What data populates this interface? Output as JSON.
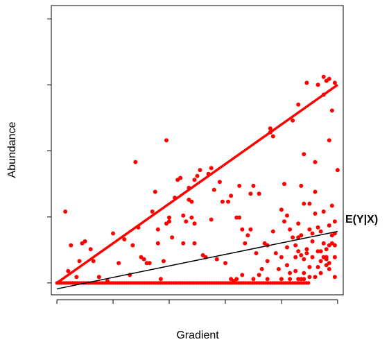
{
  "chart_data": {
    "type": "scatter",
    "title": "",
    "xlabel": "Gradient",
    "ylabel": "Abundance",
    "xlim": [
      -0.02,
      1.02
    ],
    "ylim": [
      -0.06,
      1.4
    ],
    "x_ticks": [
      0,
      0.2,
      0.4,
      0.6,
      0.8,
      1.0
    ],
    "y_ticks": [
      0,
      0.333,
      0.667,
      1.0,
      1.333
    ],
    "tick_labels_visible": false,
    "grid": false,
    "legend": "none",
    "annotation": "E(Y|X)",
    "colors": {
      "points": "#ff0000",
      "envelope": "#ff0000",
      "mean_line": "#000000"
    },
    "series": [
      {
        "kind": "points",
        "points": [
          [
            0.03,
            0.36
          ],
          [
            0.04,
            0.06
          ],
          [
            0.05,
            0.19
          ],
          [
            0.07,
            0.03
          ],
          [
            0.08,
            0.11
          ],
          [
            0.09,
            0.2
          ],
          [
            0.1,
            0.21
          ],
          [
            0.12,
            0.17
          ],
          [
            0.13,
            0.11
          ],
          [
            0.15,
            0.03
          ],
          [
            0.18,
            0.01
          ],
          [
            0.2,
            0.25
          ],
          [
            0.22,
            0.1
          ],
          [
            0.24,
            0.22
          ],
          [
            0.26,
            0.04
          ],
          [
            0.27,
            0.19
          ],
          [
            0.28,
            0.61
          ],
          [
            0.29,
            0.28
          ],
          [
            0.3,
            0.13
          ],
          [
            0.31,
            0.12
          ],
          [
            0.32,
            0.1
          ],
          [
            0.33,
            0.1
          ],
          [
            0.34,
            0.36
          ],
          [
            0.35,
            0.46
          ],
          [
            0.36,
            0.27
          ],
          [
            0.36,
            0.2
          ],
          [
            0.37,
            0.02
          ],
          [
            0.38,
            0.11
          ],
          [
            0.39,
            0.72
          ],
          [
            0.39,
            0.3
          ],
          [
            0.4,
            0.33
          ],
          [
            0.4,
            0.31
          ],
          [
            0.41,
            0.23
          ],
          [
            0.42,
            0.43
          ],
          [
            0.43,
            0.52
          ],
          [
            0.44,
            0.53
          ],
          [
            0.45,
            0.34
          ],
          [
            0.45,
            0.2
          ],
          [
            0.46,
            0.31
          ],
          [
            0.47,
            0.42
          ],
          [
            0.47,
            0.48
          ],
          [
            0.48,
            0.41
          ],
          [
            0.48,
            0.33
          ],
          [
            0.49,
            0.3
          ],
          [
            0.49,
            0.2
          ],
          [
            0.49,
            0.52
          ],
          [
            0.5,
            0.54
          ],
          [
            0.51,
            0.57
          ],
          [
            0.52,
            0.14
          ],
          [
            0.53,
            0.13
          ],
          [
            0.54,
            0.55
          ],
          [
            0.55,
            0.58
          ],
          [
            0.55,
            0.32
          ],
          [
            0.56,
            0.47
          ],
          [
            0.57,
            0.12
          ],
          [
            0.58,
            0.51
          ],
          [
            0.59,
            0.41
          ],
          [
            0.6,
            0.1
          ],
          [
            0.61,
            0.41
          ],
          [
            0.62,
            0.44
          ],
          [
            0.63,
            0.01
          ],
          [
            0.64,
            0.02
          ],
          [
            0.64,
            0.33
          ],
          [
            0.65,
            0.33
          ],
          [
            0.65,
            0.49
          ],
          [
            0.66,
            0.27
          ],
          [
            0.66,
            0.04
          ],
          [
            0.67,
            0.2
          ],
          [
            0.68,
            0.24
          ],
          [
            0.69,
            0.27
          ],
          [
            0.69,
            0.45
          ],
          [
            0.7,
            0.49
          ],
          [
            0.71,
            0.15
          ],
          [
            0.72,
            0.04
          ],
          [
            0.72,
            0.45
          ],
          [
            0.73,
            0.07
          ],
          [
            0.74,
            0.2
          ],
          [
            0.75,
            0.11
          ],
          [
            0.75,
            0.19
          ],
          [
            0.76,
            0.76
          ],
          [
            0.77,
            0.74
          ],
          [
            0.77,
            0.26
          ],
          [
            0.78,
            0.15
          ],
          [
            0.79,
            0.07
          ],
          [
            0.8,
            0.13
          ],
          [
            0.8,
            0.37
          ],
          [
            0.81,
            0.31
          ],
          [
            0.81,
            0.5
          ],
          [
            0.82,
            0.09
          ],
          [
            0.82,
            0.18
          ],
          [
            0.83,
            0.05
          ],
          [
            0.83,
            0.27
          ],
          [
            0.84,
            0.23
          ],
          [
            0.84,
            0.82
          ],
          [
            0.85,
            0.06
          ],
          [
            0.85,
            0.19
          ],
          [
            0.86,
            0.16
          ],
          [
            0.86,
            0.23
          ],
          [
            0.86,
            0.3
          ],
          [
            0.87,
            0.14
          ],
          [
            0.87,
            0.24
          ],
          [
            0.88,
            0.05
          ],
          [
            0.88,
            0.12
          ],
          [
            0.88,
            0.65
          ],
          [
            0.89,
            0.17
          ],
          [
            0.89,
            1.01
          ],
          [
            0.9,
            0.08
          ],
          [
            0.9,
            0.03
          ],
          [
            0.91,
            0.21
          ],
          [
            0.91,
            0.13
          ],
          [
            0.92,
            0.35
          ],
          [
            0.92,
            0.46
          ],
          [
            0.92,
            0.61
          ],
          [
            0.93,
            0.08
          ],
          [
            0.93,
            0.16
          ],
          [
            0.94,
            0.26
          ],
          [
            0.94,
            0.05
          ],
          [
            0.95,
            0.95
          ],
          [
            0.95,
            0.2
          ],
          [
            0.96,
            0.13
          ],
          [
            0.96,
            0.09
          ],
          [
            0.96,
            0.12
          ],
          [
            0.97,
            0.29
          ],
          [
            0.97,
            0.72
          ],
          [
            0.97,
            0.07
          ],
          [
            0.98,
            0.39
          ],
          [
            0.98,
            0.87
          ],
          [
            0.98,
            0.24
          ],
          [
            0.99,
            0.03
          ],
          [
            0.99,
            0.19
          ],
          [
            0.99,
            0.31
          ],
          [
            1.0,
            0.57
          ],
          [
            0.93,
            0.28
          ],
          [
            0.97,
            0.1
          ],
          [
            0.95,
            0.13
          ],
          [
            0.9,
            0.27
          ],
          [
            0.86,
            0.9
          ],
          [
            0.76,
            0.78
          ],
          [
            0.82,
            0.34
          ],
          [
            0.85,
            0.13
          ],
          [
            0.92,
            0.03
          ],
          [
            0.95,
            0.36
          ],
          [
            0.98,
            0.2
          ],
          [
            0.99,
            0.13
          ],
          [
            0.95,
            1.04
          ],
          [
            0.97,
            1.03
          ],
          [
            0.93,
            1.0
          ],
          [
            0.96,
            1.02
          ],
          [
            0.99,
            1.01
          ],
          [
            0.96,
            0.17
          ],
          [
            0.94,
            0.16
          ],
          [
            0.88,
            0.4
          ],
          [
            0.87,
            0.49
          ],
          [
            0.9,
            0.4
          ],
          [
            0.89,
            0.15
          ],
          [
            0.91,
            0.25
          ],
          [
            0.94,
            0.11
          ],
          [
            0.97,
            0.19
          ],
          [
            0.99,
            0.25
          ],
          [
            0.83,
            0.02
          ],
          [
            0.86,
            0.02
          ],
          [
            0.87,
            0.02
          ],
          [
            0.88,
            0.02
          ],
          [
            0.8,
            0.02
          ],
          [
            0.75,
            0.02
          ],
          [
            0.7,
            0.02
          ],
          [
            0.62,
            0.02
          ]
        ]
      },
      {
        "kind": "line",
        "name": "upper envelope",
        "x": [
          0.0,
          1.0
        ],
        "y": [
          0.0,
          1.0
        ]
      },
      {
        "kind": "line",
        "name": "lower envelope",
        "x": [
          0.0,
          0.9
        ],
        "y": [
          0.0,
          0.0
        ]
      },
      {
        "kind": "line",
        "name": "E(Y|X)",
        "x": [
          0.0,
          1.0
        ],
        "y": [
          -0.03,
          0.26
        ]
      }
    ]
  }
}
